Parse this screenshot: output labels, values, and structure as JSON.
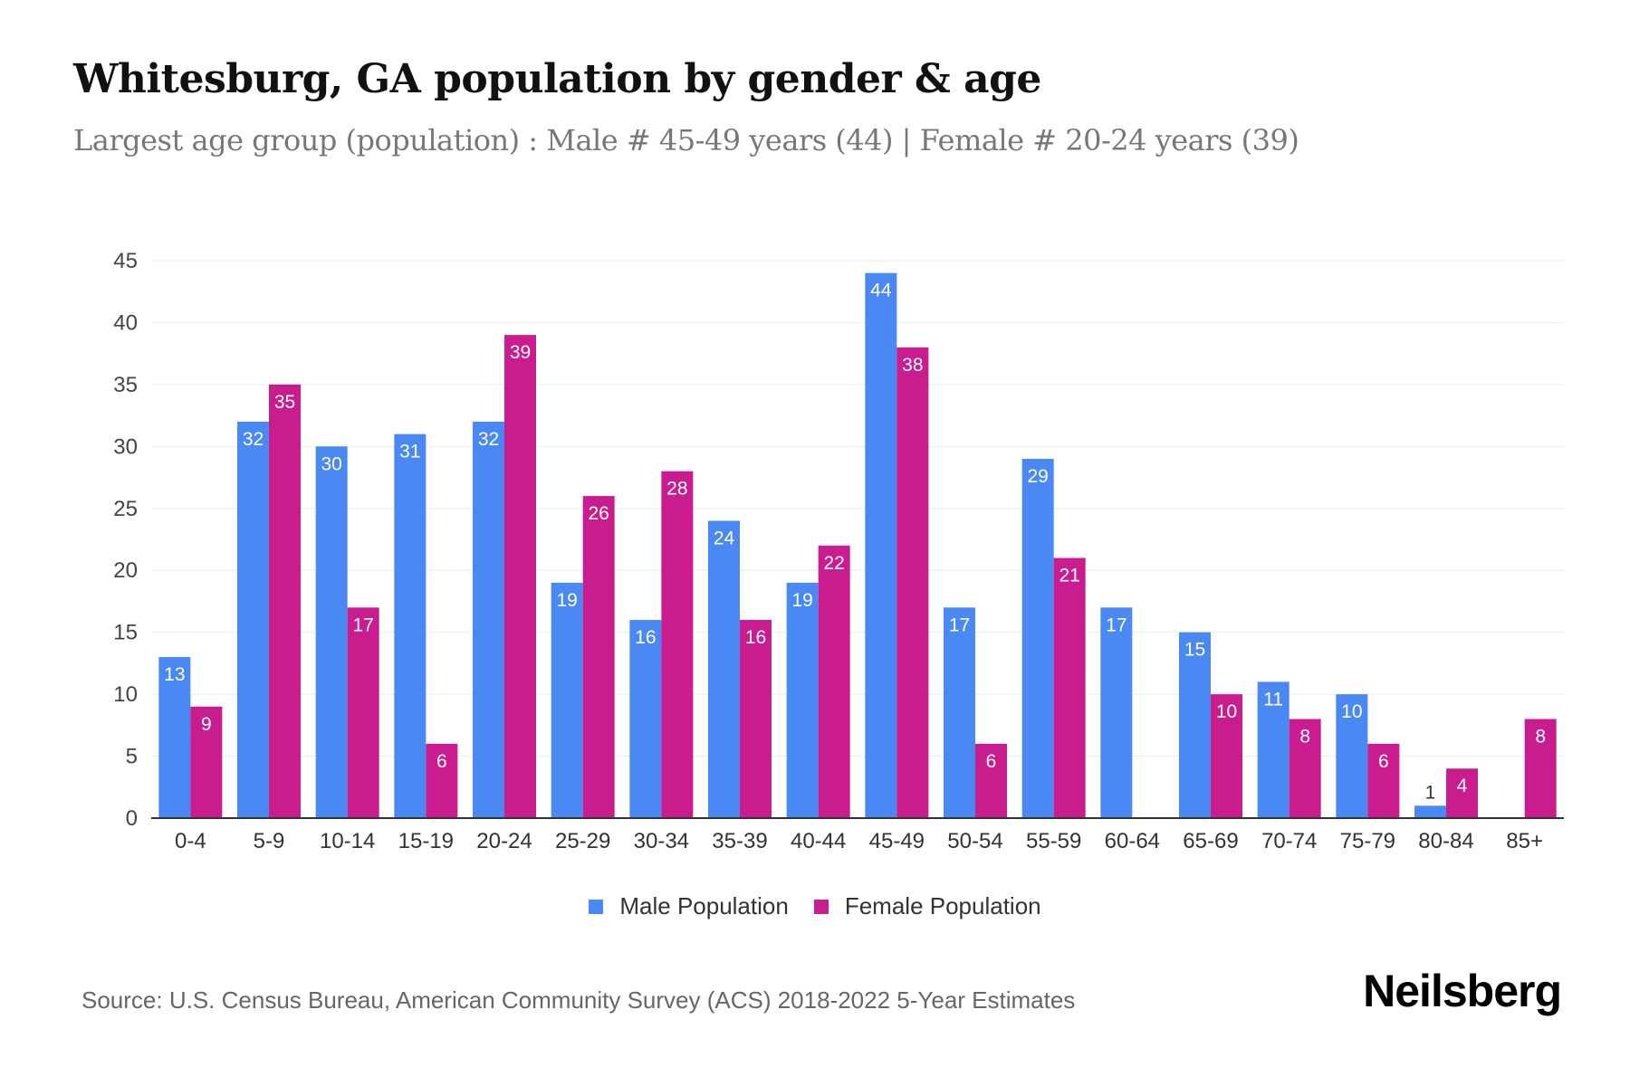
{
  "title": "Whitesburg, GA population by gender & age",
  "subtitle": "Largest age group (population) : Male # 45-49 years (44) | Female # 20-24 years (39)",
  "source": "Source: U.S. Census Bureau, American Community Survey (ACS) 2018-2022 5-Year Estimates",
  "logo": "Neilsberg",
  "colors": {
    "male": "#4a89f3",
    "female": "#c91c8f"
  },
  "chart_data": {
    "type": "bar",
    "title": "Whitesburg, GA population by gender & age",
    "xlabel": "",
    "ylabel": "",
    "ylim": [
      0,
      45
    ],
    "yticks": [
      0,
      5,
      10,
      15,
      20,
      25,
      30,
      35,
      40,
      45
    ],
    "grid": true,
    "legend_position": "bottom-center",
    "categories": [
      "0-4",
      "5-9",
      "10-14",
      "15-19",
      "20-24",
      "25-29",
      "30-34",
      "35-39",
      "40-44",
      "45-49",
      "50-54",
      "55-59",
      "60-64",
      "65-69",
      "70-74",
      "75-79",
      "80-84",
      "85+"
    ],
    "series": [
      {
        "name": "Male Population",
        "values": [
          13,
          32,
          30,
          31,
          32,
          19,
          16,
          24,
          19,
          44,
          17,
          29,
          17,
          15,
          11,
          10,
          1,
          null
        ]
      },
      {
        "name": "Female Population",
        "values": [
          9,
          35,
          17,
          6,
          39,
          26,
          28,
          16,
          22,
          38,
          6,
          21,
          null,
          10,
          8,
          6,
          4,
          8
        ]
      }
    ]
  }
}
